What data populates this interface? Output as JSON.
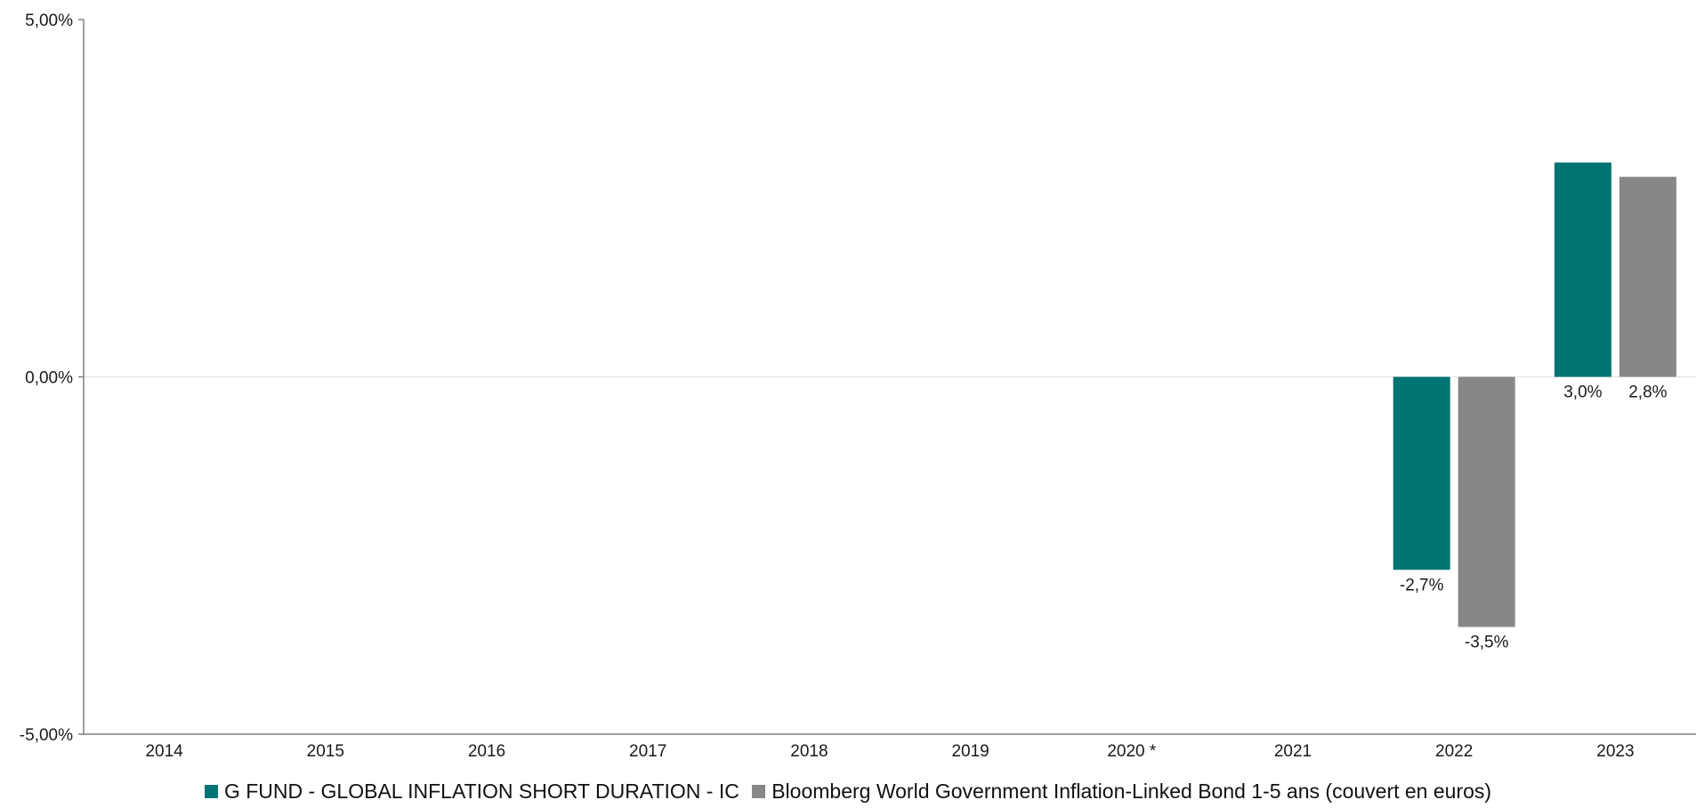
{
  "chart_data": {
    "type": "bar",
    "categories": [
      "2014",
      "2015",
      "2016",
      "2017",
      "2018",
      "2019",
      "2020 *",
      "2021",
      "2022",
      "2023"
    ],
    "series": [
      {
        "name": "G FUND - GLOBAL INFLATION SHORT DURATION - IC",
        "color": "#007373",
        "values": [
          null,
          null,
          null,
          null,
          null,
          null,
          null,
          null,
          -2.7,
          3.0
        ],
        "labels": [
          "",
          "",
          "",
          "",
          "",
          "",
          "",
          "",
          "-2,7%",
          "3,0%"
        ]
      },
      {
        "name": "Bloomberg World Government Inflation-Linked Bond 1-5 ans (couvert en euros)",
        "color": "#878787",
        "values": [
          null,
          null,
          null,
          null,
          null,
          null,
          null,
          null,
          -3.5,
          2.8
        ],
        "labels": [
          "",
          "",
          "",
          "",
          "",
          "",
          "",
          "",
          "-3,5%",
          "2,8%"
        ]
      }
    ],
    "y_ticks": [
      {
        "value": 5,
        "label": "5,00%"
      },
      {
        "value": 0,
        "label": "0,00%"
      },
      {
        "value": -5,
        "label": "-5,00%"
      }
    ],
    "ylim": [
      -5,
      5
    ],
    "legend_position": "bottom"
  }
}
